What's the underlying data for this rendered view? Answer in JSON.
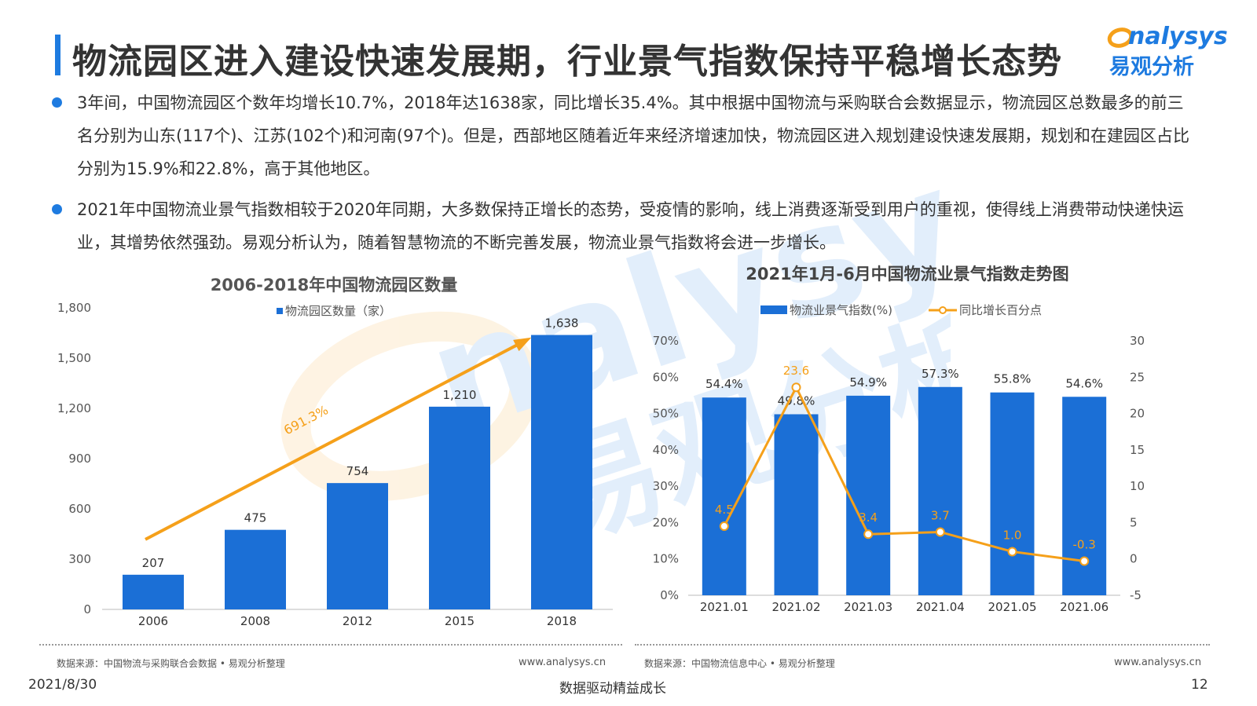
{
  "header": {
    "title": "物流园区进入建设快速发展期，行业景气指数保持平稳增长态势",
    "logo_text": "nalysys",
    "logo_cn": "易观分析"
  },
  "bullets": [
    "3年间，中国物流园区个数年均增长10.7%，2018年达1638家，同比增长35.4%。其中根据中国物流与采购联合会数据显示，物流园区总数最多的前三名分别为山东(117个)、江苏(102个)和河南(97个)。但是，西部地区随着近年来经济增速加快，物流园区进入规划建设快速发展期，规划和在建园区占比分别为15.9%和22.8%，高于其他地区。",
    "2021年中国物流业景气指数相较于2020年同期，大多数保持正增长的态势，受疫情的影响，线上消费逐渐受到用户的重视，使得线上消费带动快递快运业，其增势依然强劲。易观分析认为，随着智慧物流的不断完善发展，物流业景气指数将会进一步增长。"
  ],
  "colors": {
    "accent": "#1e7be0",
    "bar": "#1b6fd6",
    "line": "#f5a01a",
    "text": "#333333"
  },
  "chart_data": [
    {
      "type": "bar",
      "title": "2006-2018年中国物流园区数量",
      "categories": [
        "2006",
        "2008",
        "2012",
        "2015",
        "2018"
      ],
      "series": [
        {
          "name": "物流园区数量（家）",
          "values": [
            207,
            475,
            754,
            1210,
            1638
          ]
        }
      ],
      "data_labels": [
        "207",
        "475",
        "754",
        "1,210",
        "1,638"
      ],
      "y_ticks": [
        "0",
        "300",
        "600",
        "900",
        "1,200",
        "1,500",
        "1,800"
      ],
      "ylim": [
        0,
        1800
      ],
      "annotation": "691.3%",
      "legend_position": "top-center"
    },
    {
      "type": "bar",
      "title": "2021年1月-6月中国物流业景气指数走势图",
      "categories": [
        "2021.01",
        "2021.02",
        "2021.03",
        "2021.04",
        "2021.05",
        "2021.06"
      ],
      "series": [
        {
          "name": "物流业景气指数(%)",
          "type": "bar",
          "axis": "left",
          "values": [
            54.4,
            49.8,
            54.9,
            57.3,
            55.8,
            54.6
          ],
          "labels": [
            "54.4%",
            "49.8%",
            "54.9%",
            "57.3%",
            "55.8%",
            "54.6%"
          ]
        },
        {
          "name": "同比增长百分点",
          "type": "line",
          "axis": "right",
          "values": [
            4.5,
            23.6,
            3.4,
            3.7,
            1.0,
            -0.3
          ],
          "labels": [
            "4.5",
            "23.6",
            "3.4",
            "3.7",
            "1.0",
            "-0.3"
          ]
        }
      ],
      "y_left_ticks": [
        "0%",
        "10%",
        "20%",
        "30%",
        "40%",
        "50%",
        "60%",
        "70%"
      ],
      "y_right_ticks": [
        "-5",
        "0",
        "5",
        "10",
        "15",
        "20",
        "25",
        "30"
      ],
      "ylim_left": [
        0,
        70
      ],
      "ylim_right": [
        -5,
        30
      ],
      "legend_position": "top-center"
    }
  ],
  "sources": {
    "left": "数据来源：中国物流与采购联合会数据 • 易观分析整理",
    "right": "数据来源：中国物流信息中心 • 易观分析整理",
    "url_left": "www.analysys.cn",
    "url_right": "www.analysys.cn"
  },
  "footer": {
    "date": "2021/8/30",
    "slogan": "数据驱动精益成长",
    "page": "12"
  }
}
